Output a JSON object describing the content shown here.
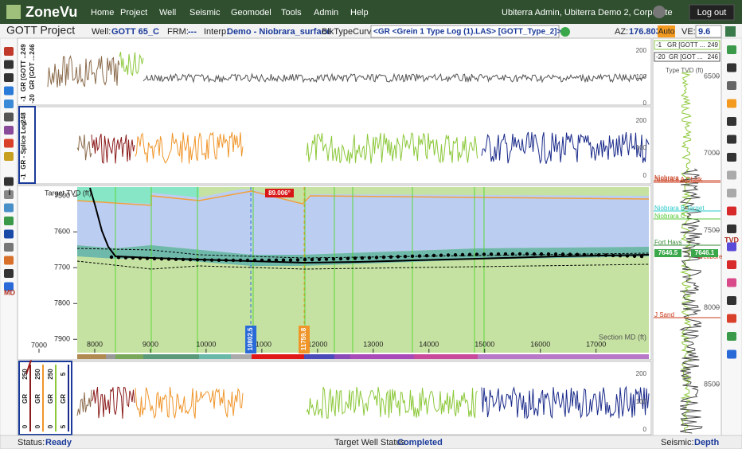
{
  "nav": {
    "logo": "ZoneVu",
    "items": [
      "Home",
      "Project",
      "Well",
      "Seismic",
      "Geomodel",
      "Tools",
      "Admin",
      "Help"
    ],
    "user": "Ubiterra Admin, Ubiterra Demo 2, Corporate",
    "logout": "Log out"
  },
  "toolbar": {
    "project": "GOTT Project",
    "well_label": "Well:",
    "well": "GOTT 65_C",
    "frm_label": "FRM:",
    "frm": "---",
    "interp_label": "Interp:",
    "interp": "Demo - Niobrara_surface",
    "type_curve_label": "BlkTypeCurve:",
    "type_curve": "<GR <Grein 1 Type Log (1).LAS> [GOTT_Type_2]>",
    "az_label": "AZ:",
    "az": "176.803°",
    "auto": "Auto",
    "ve_label": "VE:",
    "ve": "9.6"
  },
  "left_tools": {
    "info": "i",
    "md": "MD"
  },
  "right_tools": {
    "tvd": "TVD"
  },
  "panels": [
    {
      "tracks": [
        {
          "name": "GR [GOTT ...",
          "max": "249",
          "min": "-1"
        },
        {
          "name": "GR [GOT ...",
          "max": "246",
          "min": "-20"
        }
      ],
      "scale": [
        "200",
        "100",
        "0"
      ]
    },
    {
      "tracks": [
        {
          "name": "GR - Splice Log",
          "max": "248",
          "min": "-1"
        }
      ],
      "scale": [
        "200",
        "100",
        "0"
      ]
    },
    {
      "tracks": [
        {
          "name": "GR",
          "max": "250",
          "min": "0"
        },
        {
          "name": "GR",
          "max": "250",
          "min": "0"
        },
        {
          "name": "GR",
          "max": "250",
          "min": "0"
        },
        {
          "name": "GR",
          "max": "5",
          "min": "5"
        }
      ],
      "scale": [
        "200",
        "100",
        "0"
      ]
    }
  ],
  "cross_section": {
    "y_label": "Target TVD (ft)",
    "x_label": "Section MD (ft)",
    "ylim": [
      7475,
      7935
    ],
    "yticks": [
      7500,
      7600,
      7700,
      7800,
      7900
    ],
    "xlim": [
      7000,
      17962
    ],
    "xticks": [
      7000,
      8000,
      9000,
      10000,
      11000,
      12000,
      13000,
      14000,
      15000,
      16000,
      17000
    ],
    "markers": [
      10802.5,
      11759.8
    ],
    "angle": "89.006°"
  },
  "type_log": {
    "legend": [
      {
        "min": "-1",
        "name": "GR [GOTT ...",
        "max": "249"
      },
      {
        "min": "-20",
        "name": "GR [GOT ...",
        "max": "246"
      }
    ],
    "axis_label": "Type TVD (ft)",
    "ylim": [
      6290,
      8800
    ],
    "yticks": [
      6500,
      7000,
      7500,
      8000,
      8500
    ],
    "tops": [
      "Niobrara",
      "Niobrara A Chalk",
      "Niobrara B Target",
      "Niobrara C",
      "Fort Hays",
      "Target",
      "Wellbore",
      "J Sand"
    ],
    "boxes": [
      "7646.5",
      "7646.1"
    ]
  },
  "status": {
    "label": "Status:",
    "value": "Ready",
    "target_label": "Target Well Status:",
    "target": "Completed",
    "seismic_label": "Seismic:",
    "seismic": "Depth"
  }
}
